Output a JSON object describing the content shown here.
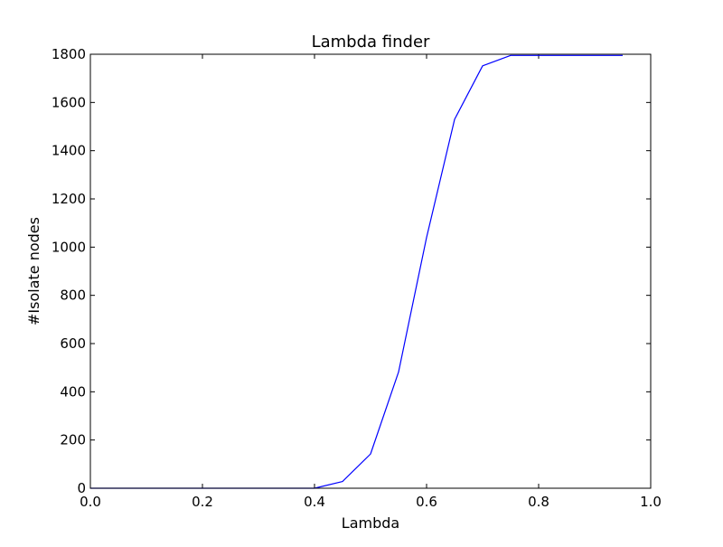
{
  "chart_data": {
    "type": "line",
    "title": "Lambda finder",
    "xlabel": "Lambda",
    "ylabel": "#Isolate nodes",
    "xlim": [
      0.0,
      1.0
    ],
    "ylim": [
      0,
      1800
    ],
    "xticks": [
      0.0,
      0.2,
      0.4,
      0.6,
      0.8,
      1.0
    ],
    "xtick_labels": [
      "0.0",
      "0.2",
      "0.4",
      "0.6",
      "0.8",
      "1.0"
    ],
    "yticks": [
      0,
      200,
      400,
      600,
      800,
      1000,
      1200,
      1400,
      1600,
      1800
    ],
    "ytick_labels": [
      "0",
      "200",
      "400",
      "600",
      "800",
      "1000",
      "1200",
      "1400",
      "1600",
      "1800"
    ],
    "grid": false,
    "series": [
      {
        "color": "#0000ff",
        "x": [
          0.0,
          0.05,
          0.1,
          0.15,
          0.2,
          0.25,
          0.3,
          0.35,
          0.4,
          0.45,
          0.5,
          0.55,
          0.6,
          0.65,
          0.7,
          0.75,
          0.8,
          0.85,
          0.9,
          0.95
        ],
        "y": [
          0,
          0,
          0,
          0,
          0,
          0,
          0,
          0,
          0,
          28,
          142,
          482,
          1040,
          1530,
          1752,
          1795,
          1795,
          1795,
          1795,
          1795
        ]
      }
    ]
  }
}
